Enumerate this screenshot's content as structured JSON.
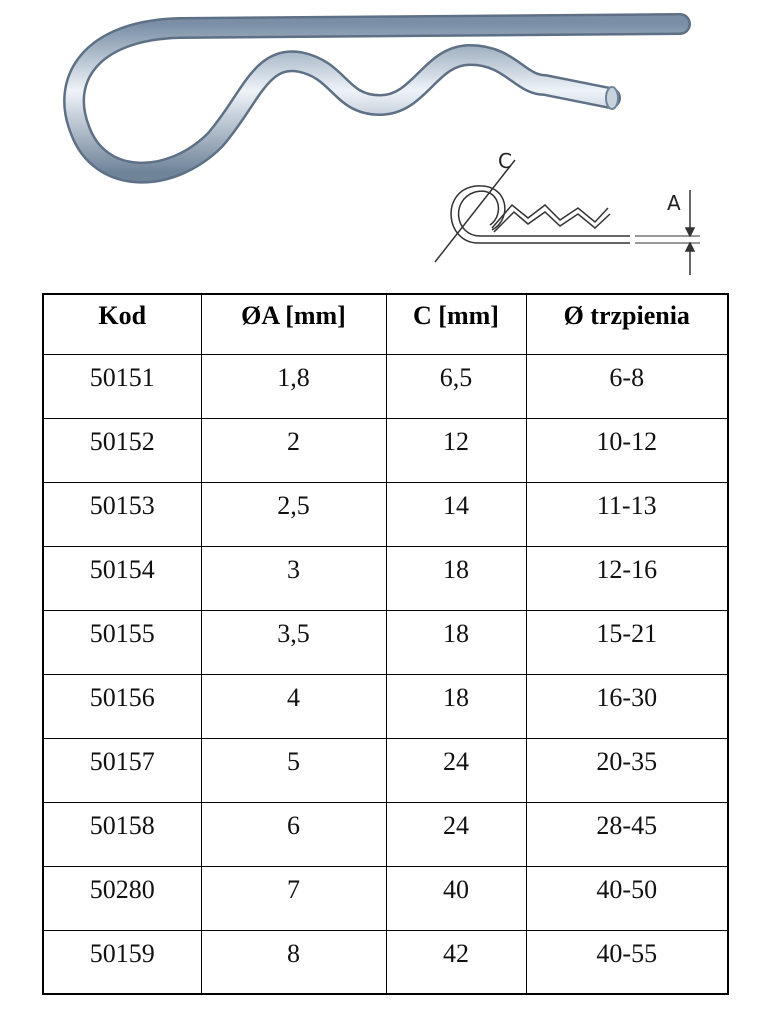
{
  "drawing": {
    "labels": [
      "C",
      "A"
    ]
  },
  "table": {
    "header": [
      "Kod",
      "ØA [mm]",
      "C [mm]",
      "Ø trzpienia"
    ],
    "rows": [
      [
        "50151",
        "1,8",
        "6,5",
        "6-8"
      ],
      [
        "50152",
        "2",
        "12",
        "10-12"
      ],
      [
        "50153",
        "2,5",
        "14",
        "11-13"
      ],
      [
        "50154",
        "3",
        "18",
        "12-16"
      ],
      [
        "50155",
        "3,5",
        "18",
        "15-21"
      ],
      [
        "50156",
        "4",
        "18",
        "16-30"
      ],
      [
        "50157",
        "5",
        "24",
        "20-35"
      ],
      [
        "50158",
        "6",
        "24",
        "28-45"
      ],
      [
        "50280",
        "7",
        "40",
        "40-50"
      ],
      [
        "50159",
        "8",
        "42",
        "40-55"
      ]
    ]
  }
}
